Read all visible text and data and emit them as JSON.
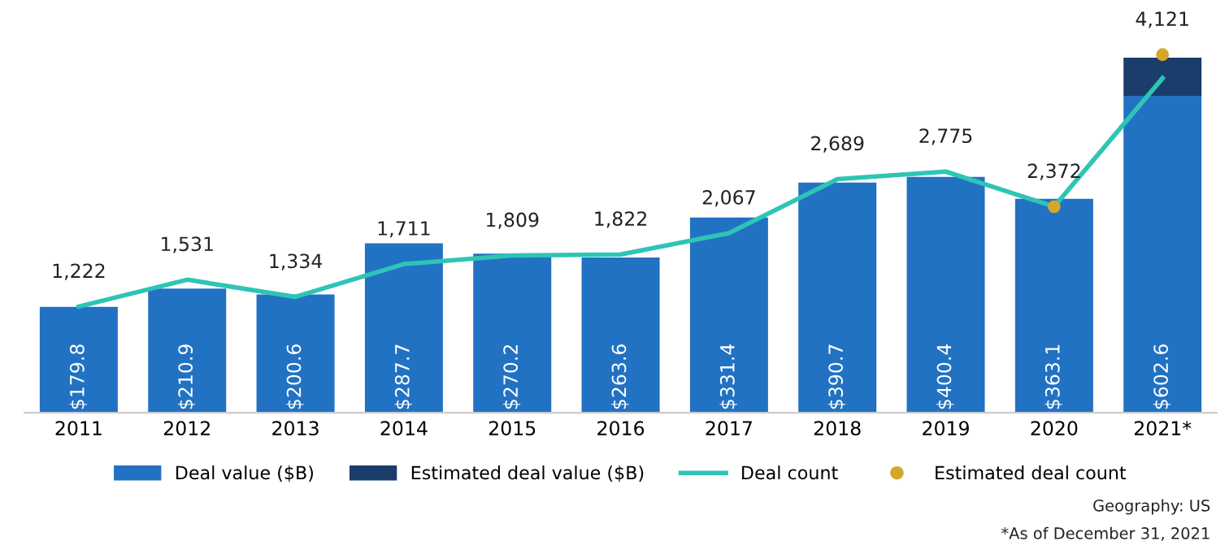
{
  "chart_data": {
    "type": "bar",
    "stacked": true,
    "categories": [
      "2011",
      "2012",
      "2013",
      "2014",
      "2015",
      "2016",
      "2017",
      "2018",
      "2019",
      "2020",
      "2021*"
    ],
    "tick_labels": "x",
    "legend": "bottom",
    "totals": [
      null,
      null,
      null,
      null,
      null,
      null,
      null,
      null,
      null,
      null,
      "$602.6"
    ],
    "series": [
      {
        "name": "Deal value ($B)",
        "color": "#2272c3",
        "values": [
          179.8,
          210.9,
          200.6,
          287.7,
          270.2,
          263.6,
          331.4,
          390.7,
          400.4,
          363.1,
          538
        ],
        "value_labels": [
          "$179.8",
          "$210.9",
          "$200.6",
          "$287.7",
          "$270.2",
          "$263.6",
          "$331.4",
          "$390.7",
          "$400.4",
          "$363.1",
          null
        ]
      },
      {
        "name": "Estimated deal value ($B)",
        "color": "#1b3d6b",
        "values": [
          null,
          null,
          null,
          null,
          null,
          null,
          null,
          null,
          null,
          null,
          64.6
        ]
      },
      {
        "name": "Deal count",
        "type": "line",
        "axis": "y2",
        "color": "#2ec4b6",
        "values": [
          1222,
          1531,
          1334,
          1711,
          1809,
          1822,
          2067,
          2689,
          2775,
          2372,
          3850
        ],
        "value_labels": [
          "1,222",
          "1,531",
          "1,334",
          "1,711",
          "1,809",
          "1,822",
          "2,067",
          "2,689",
          "2,775",
          "2,372",
          null
        ]
      },
      {
        "name": "Estimated deal count",
        "type": "scatter",
        "axis": "y2",
        "color": "#d4a72c",
        "values": [
          null,
          null,
          null,
          null,
          null,
          null,
          null,
          null,
          null,
          2372,
          4121
        ],
        "value_labels": [
          null,
          null,
          null,
          null,
          null,
          null,
          null,
          null,
          null,
          null,
          "4,121"
        ]
      }
    ],
    "annotations": [
      "Geography: US",
      "*As of December 31, 2021"
    ]
  }
}
